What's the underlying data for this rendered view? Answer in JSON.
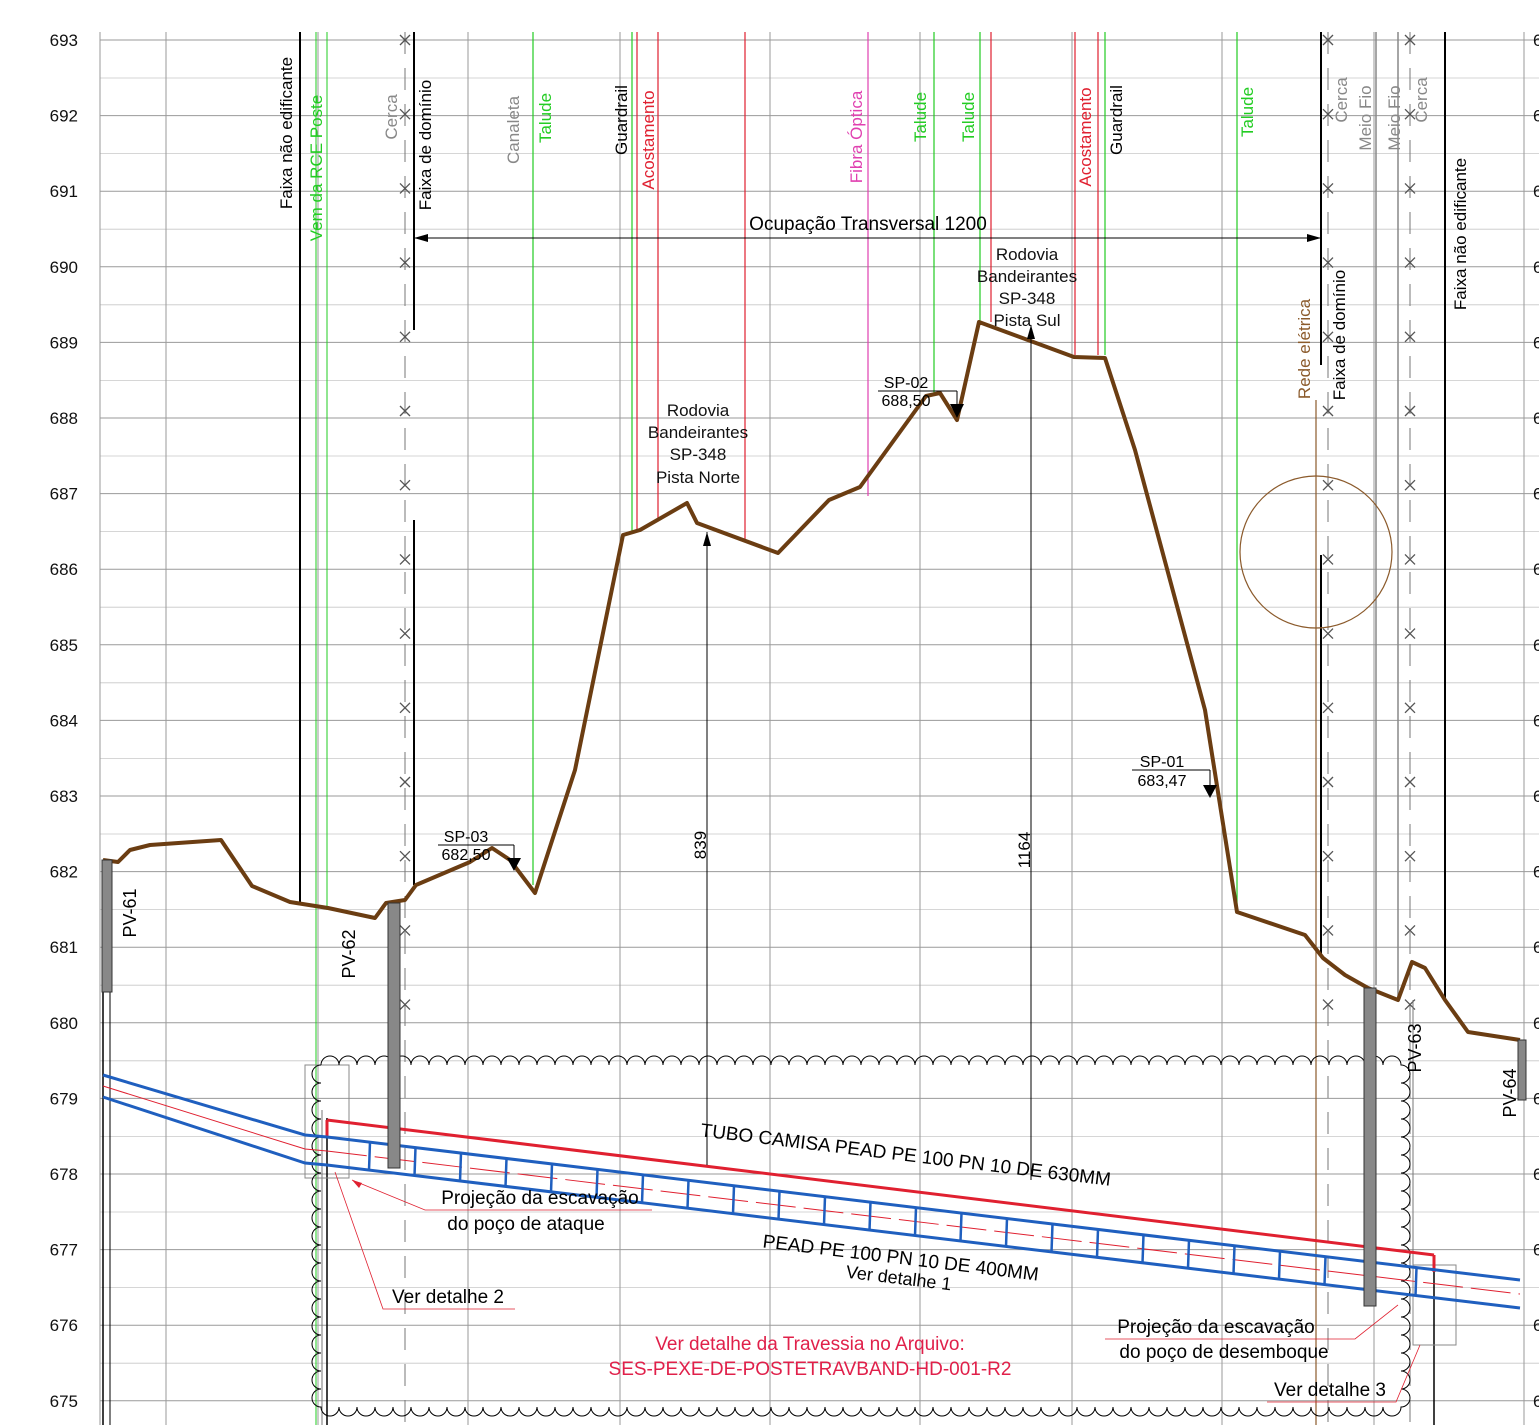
{
  "elevation_axis": {
    "ticks": [
      693,
      692,
      691,
      690,
      689,
      688,
      687,
      686,
      685,
      684,
      683,
      682,
      681,
      680,
      679,
      678,
      677,
      676,
      675
    ],
    "right_side_cut_label": "6"
  },
  "vertical_labels": {
    "faixa_nao_edificante_left": "Faixa não edificante",
    "vem_da_rce_poste": "Vem da RCE Poste",
    "cerca_left": "Cerca",
    "faixa_dominio_left": "Faixa de domínio",
    "canaleta": "Canaleta",
    "talude_1": "Talude",
    "guardrail_left": "Guardrail",
    "acostamento_left": "Acostamento",
    "fibra_optica": "Fibra Óptica",
    "talude_2": "Talude",
    "talude_3": "Talude",
    "acostamento_right": "Acostamento",
    "guardrail_right": "Guardrail",
    "talude_4": "Talude",
    "cerca_right1": "Cerca",
    "meio_fio_1": "Meio Fio",
    "meio_fio_2": "Meio Fio",
    "cerca_right2": "Cerca",
    "faixa_nao_edificante_right": "Faixa não edificante",
    "rede_eletrica": "Rede elétrica",
    "faixa_dominio_right": "Faixa de domínio"
  },
  "labels": {
    "ocupacao": "Ocupação Transversal 1200",
    "rodovia_sul": [
      "Rodovia",
      "Bandeirantes",
      "SP-348",
      "Pista Sul"
    ],
    "rodovia_norte": [
      "Rodovia",
      "Bandeirantes",
      "SP-348",
      "Pista Norte"
    ],
    "sp02_name": "SP-02",
    "sp02_value": "688,50",
    "sp03_name": "SP-03",
    "sp03_value": "682,50",
    "sp01_name": "SP-01",
    "sp01_value": "683,47",
    "dim_839": "839",
    "dim_1164": "1164",
    "pv61": "PV-61",
    "pv62": "PV-62",
    "pv63": "PV-63",
    "pv64": "PV-64",
    "tubo_camisa": "TUBO CAMISA PEAD PE 100 PN 10 DE 630MM",
    "pead_400": "PEAD PE 100 PN 10 DE 400MM",
    "ver_detalhe_1": "Ver detalhe 1",
    "projecao_ataque_1": "Projeção da escavação",
    "projecao_ataque_2": "do poço de ataque",
    "ver_detalhe_2": "Ver detalhe 2",
    "projecao_desemboque_1": "Projeção da escavação",
    "projecao_desemboque_2": "do poço de desemboque",
    "ver_detalhe_3": "Ver detalhe 3",
    "travessia_1": "Ver detalhe da Travessia no Arquivo:",
    "travessia_2": "SES-PEXE-DE-POSTETRAVBAND-HD-001-R2"
  },
  "colors": {
    "terrain": "#6b3d12",
    "pipe": "#1f5fbf",
    "casing": "#e02030",
    "talude": "#22cc22",
    "acostamento": "#e02030",
    "fibra": "#e040b0",
    "rede": "#8b5a2b",
    "travessia_text": "#e0204a"
  }
}
